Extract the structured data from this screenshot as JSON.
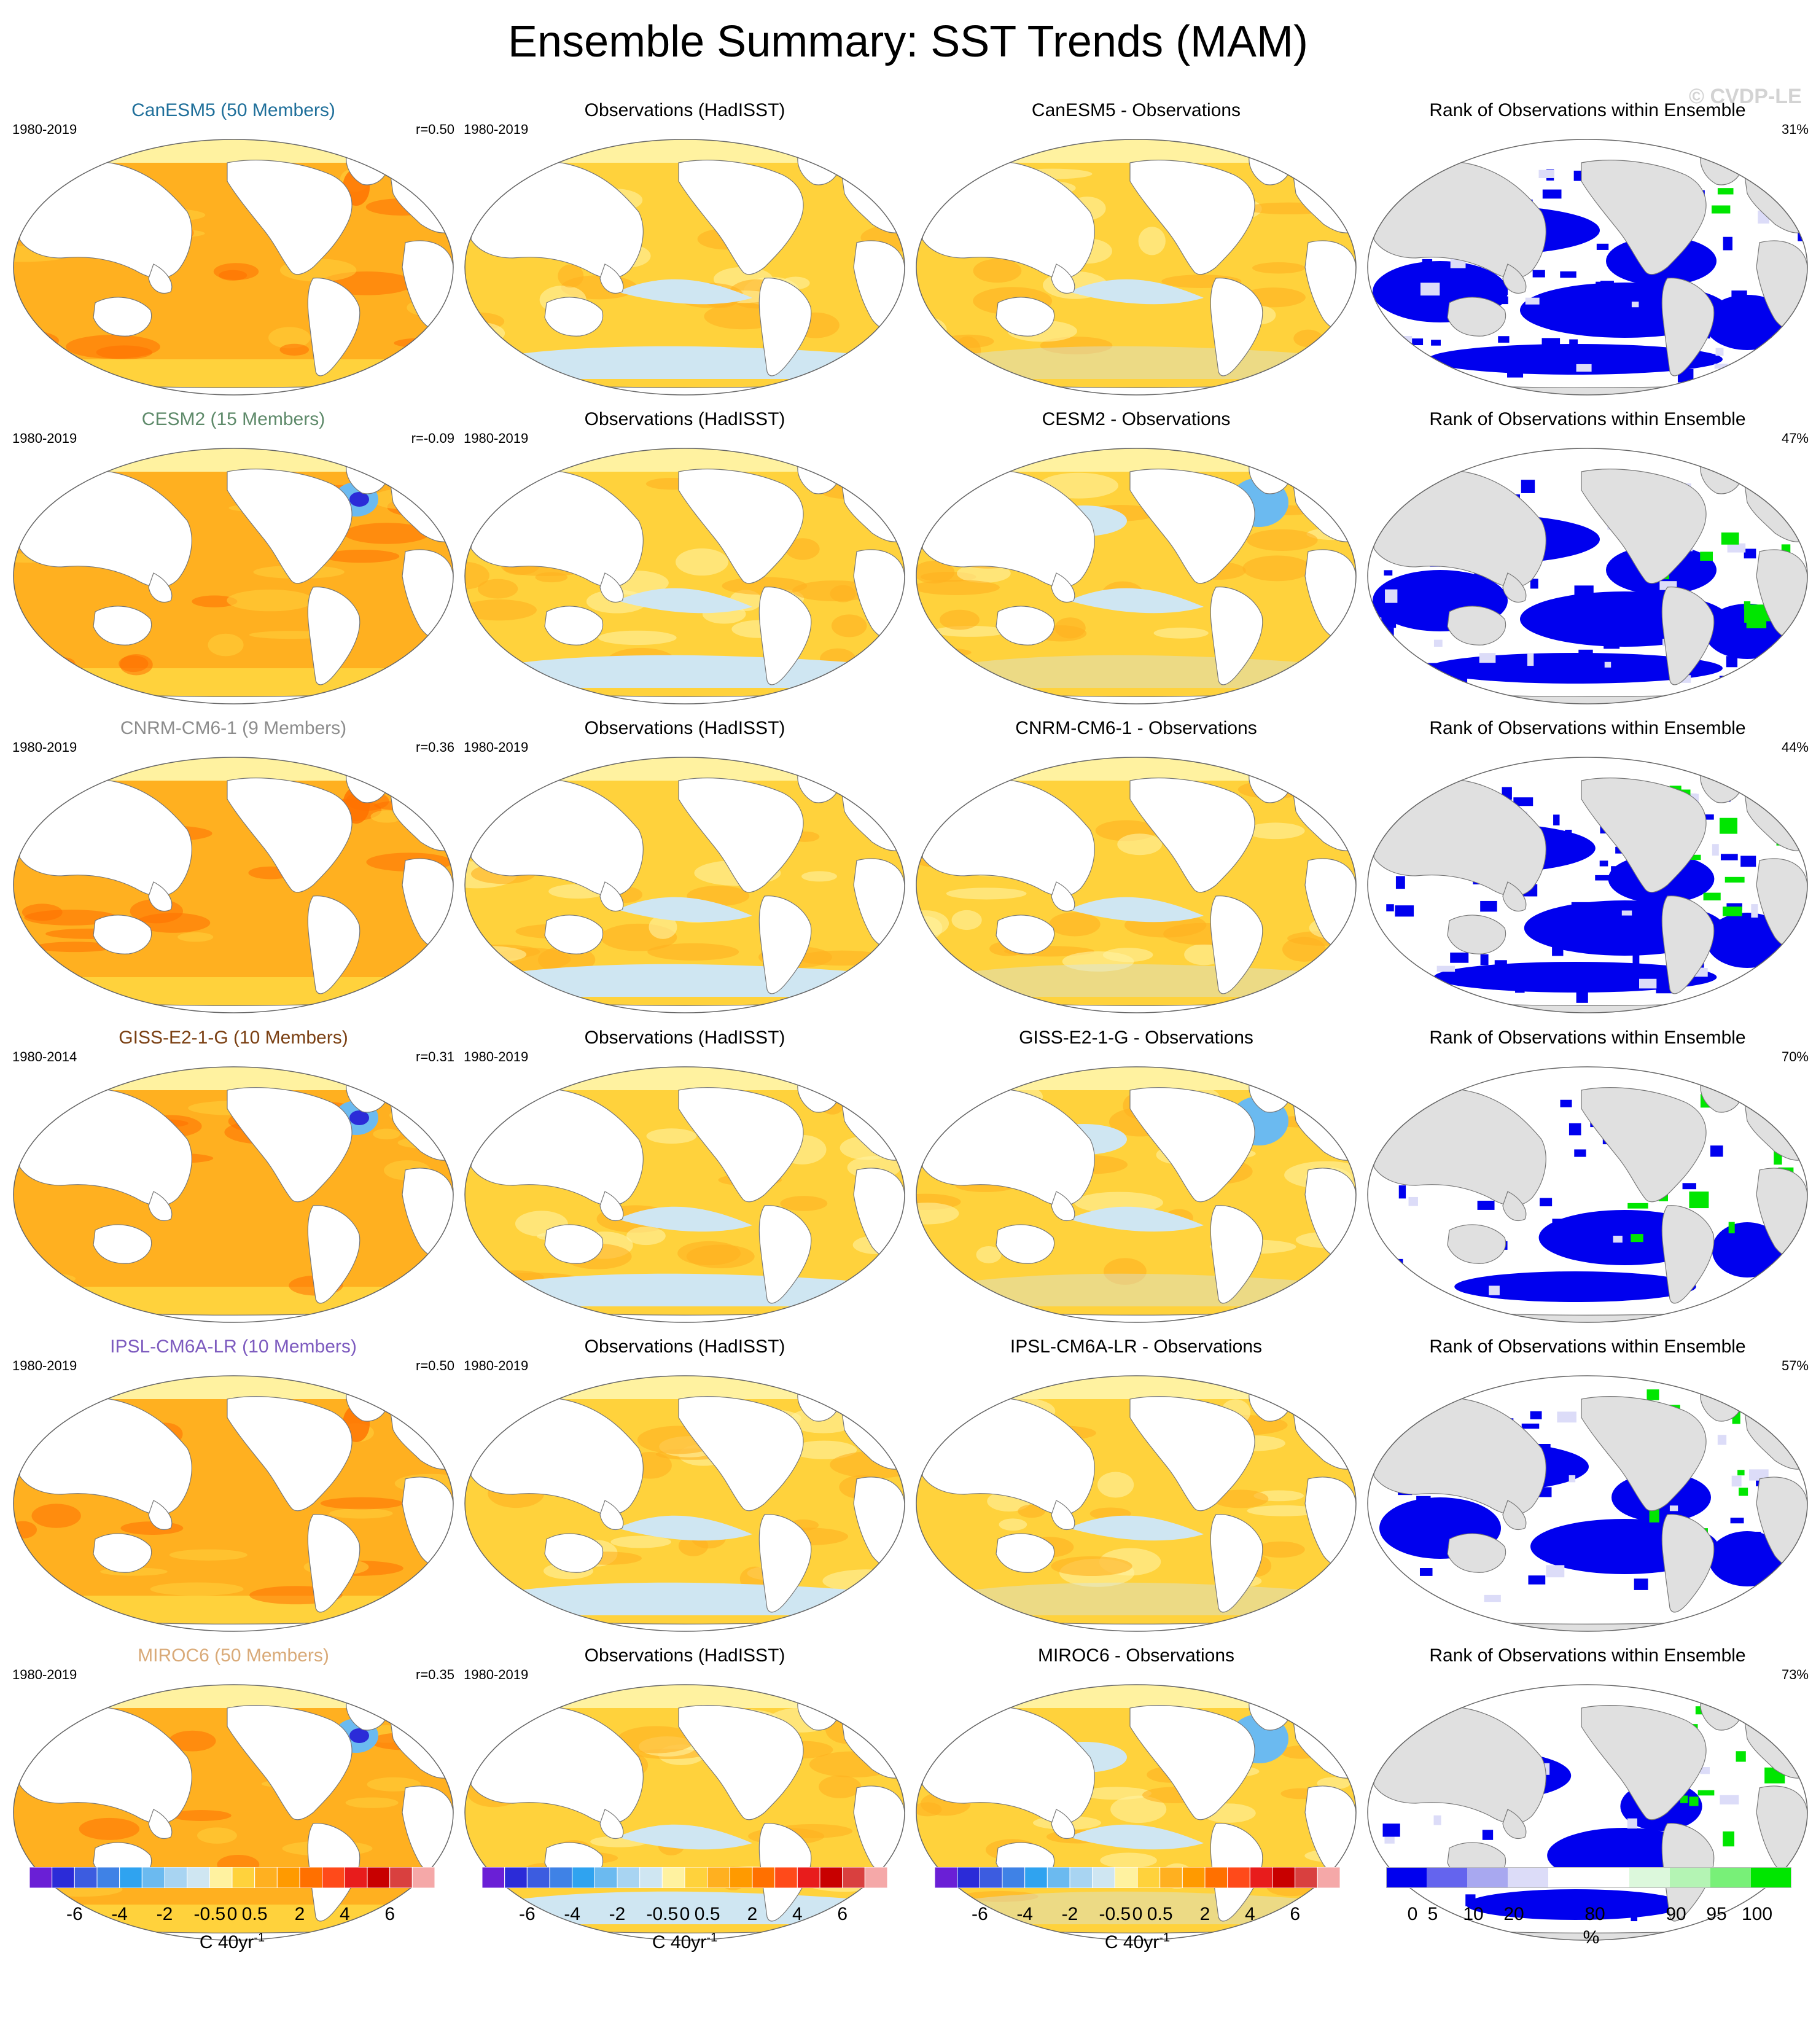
{
  "title": "Ensemble Summary: SST Trends (MAM)",
  "watermark": "© CVDP-LE",
  "columns": {
    "obs_title": "Observations (HadISST)",
    "rank_title": "Rank of Observations within Ensemble",
    "diff_suffix": " - Observations"
  },
  "rows": [
    {
      "model": "CanESM5",
      "label": "CanESM5 (50 Members)",
      "model_color": "#1f6f9a",
      "model_period": "1980-2019",
      "obs_period": "1980-2019",
      "r": "r=0.50",
      "diff_title": "CanESM5 - Observations",
      "rank_pct": "31%"
    },
    {
      "model": "CESM2",
      "label": "CESM2 (15 Members)",
      "model_color": "#5e8a6a",
      "model_period": "1980-2019",
      "obs_period": "1980-2019",
      "r": "r=-0.09",
      "diff_title": "CESM2 - Observations",
      "rank_pct": "47%"
    },
    {
      "model": "CNRM-CM6-1",
      "label": "CNRM-CM6-1 (9 Members)",
      "model_color": "#8c8c8c",
      "model_period": "1980-2019",
      "obs_period": "1980-2019",
      "r": "r=0.36",
      "diff_title": "CNRM-CM6-1 - Observations",
      "rank_pct": "44%"
    },
    {
      "model": "GISS-E2-1-G",
      "label": "GISS-E2-1-G (10 Members)",
      "model_color": "#7a3f12",
      "model_period": "1980-2014",
      "obs_period": "1980-2019",
      "r": "r=0.31",
      "diff_title": "GISS-E2-1-G - Observations",
      "rank_pct": "70%"
    },
    {
      "model": "IPSL-CM6A-LR",
      "label": "IPSL-CM6A-LR (10 Members)",
      "model_color": "#7d5bbf",
      "model_period": "1980-2019",
      "obs_period": "1980-2019",
      "r": "r=0.50",
      "diff_title": "IPSL-CM6A-LR - Observations",
      "rank_pct": "57%"
    },
    {
      "model": "MIROC6",
      "label": "MIROC6 (50 Members)",
      "model_color": "#d9aa78",
      "model_period": "1980-2019",
      "obs_period": "1980-2019",
      "r": "r=0.35",
      "diff_title": "MIROC6 - Observations",
      "rank_pct": "73%"
    }
  ],
  "trend_colorbar": {
    "colors": [
      "#6a1fd6",
      "#2b2bd8",
      "#3c5ce0",
      "#3f82e6",
      "#2fa3f0",
      "#6bbaf0",
      "#a8d4f2",
      "#cfe6f2",
      "#fff2a0",
      "#ffd23c",
      "#ffb020",
      "#ff9a00",
      "#ff7000",
      "#ff4a1a",
      "#e81c1c",
      "#c80000",
      "#d9403f",
      "#f5a8a8"
    ],
    "ticks": [
      "-6",
      "-4",
      "-2",
      "-0.5",
      "0",
      "0.5",
      "2",
      "4",
      "6"
    ],
    "unit": "C 40yr",
    "unit_sup": "-1"
  },
  "rank_colorbar": {
    "colors": [
      "#0000ee",
      "#6464ee",
      "#a8a8f0",
      "#dcdcf8",
      "#ffffff",
      "#ffffff",
      "#dcf8dc",
      "#b4f4b4",
      "#78f078",
      "#00e600"
    ],
    "ticks": [
      "0",
      "5",
      "10",
      "20",
      "80",
      "90",
      "95",
      "100"
    ],
    "unit": "%"
  },
  "map_colors": {
    "land_trend": "#ffffff",
    "land_rank": "#e0e0e0",
    "orange": "#ffb020",
    "light_orange": "#ffd23c",
    "yellow": "#fff2a0",
    "light_blue": "#cfe6f2",
    "blue": "#6bbaf0",
    "dark_blue": "#2b2bd8",
    "red": "#ff7000",
    "rank_blue": "#0000ee",
    "rank_green": "#00e600",
    "rank_lavender": "#dcdcf8"
  }
}
